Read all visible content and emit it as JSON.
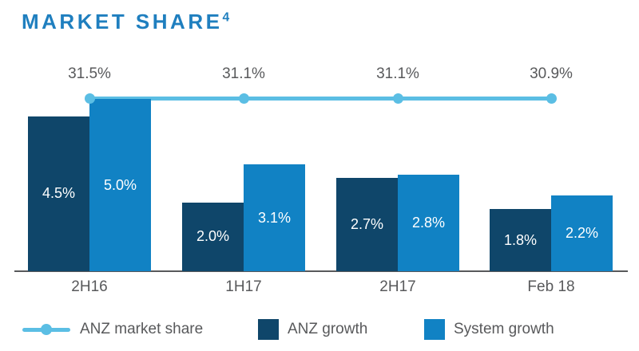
{
  "title": {
    "text": "MARKET SHARE",
    "superscript": "4"
  },
  "colors": {
    "title": "#1f7fbf",
    "anz_growth_bar": "#0f466a",
    "system_growth_bar": "#1182c4",
    "market_share_line": "#5bbee4",
    "axis_text": "#58595b",
    "bar_label_text": "#ffffff"
  },
  "chart_data": {
    "type": "bar",
    "title": "MARKET SHARE",
    "categories": [
      "2H16",
      "1H17",
      "2H17",
      "Feb 18"
    ],
    "series": [
      {
        "name": "ANZ growth",
        "type": "bar",
        "values": [
          4.5,
          2.0,
          2.7,
          1.8
        ],
        "labels": [
          "4.5%",
          "2.0%",
          "2.7%",
          "1.8%"
        ]
      },
      {
        "name": "System growth",
        "type": "bar",
        "values": [
          5.0,
          3.1,
          2.8,
          2.2
        ],
        "labels": [
          "5.0%",
          "3.1%",
          "2.8%",
          "2.2%"
        ]
      },
      {
        "name": "ANZ market share",
        "type": "line",
        "values": [
          31.5,
          31.1,
          31.1,
          30.9
        ],
        "labels": [
          "31.5%",
          "31.1%",
          "31.1%",
          "30.9%"
        ]
      }
    ],
    "xlabel": "",
    "ylabel": "",
    "grid": false,
    "legend_position": "bottom"
  },
  "legend": {
    "items": [
      {
        "label": "ANZ market share",
        "swatch": "line-dot"
      },
      {
        "label": "ANZ growth",
        "swatch": "square-dark"
      },
      {
        "label": "System growth",
        "swatch": "square-light"
      }
    ]
  }
}
